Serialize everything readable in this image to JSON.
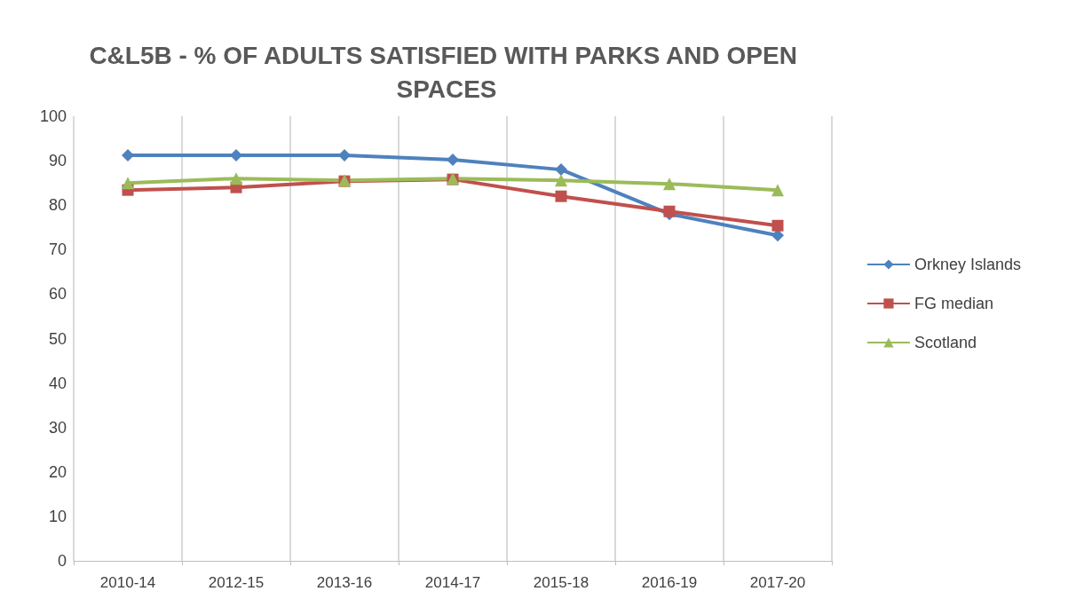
{
  "chart_data": {
    "type": "line",
    "title": "C&L5B - % OF ADULTS SATISFIED WITH PARKS AND OPEN SPACES",
    "categories": [
      "2010-14",
      "2012-15",
      "2013-16",
      "2014-17",
      "2015-18",
      "2016-19",
      "2017-20"
    ],
    "series": [
      {
        "name": "Orkney Islands",
        "color": "#4f81bd",
        "marker": "diamond",
        "values": [
          91.2,
          91.2,
          91.2,
          90.2,
          88,
          78,
          73.2
        ]
      },
      {
        "name": "FG median",
        "color": "#c0504d",
        "marker": "square",
        "values": [
          83.4,
          84,
          85.4,
          85.8,
          82,
          78.6,
          75.4
        ]
      },
      {
        "name": "Scotland",
        "color": "#9bbb59",
        "marker": "triangle",
        "values": [
          85,
          86,
          85.6,
          86,
          85.6,
          84.8,
          83.4
        ]
      }
    ],
    "ylim": [
      0,
      100
    ],
    "yticks": [
      0,
      10,
      20,
      30,
      40,
      50,
      60,
      70,
      80,
      90,
      100
    ],
    "grid": "x",
    "legend": "right"
  }
}
